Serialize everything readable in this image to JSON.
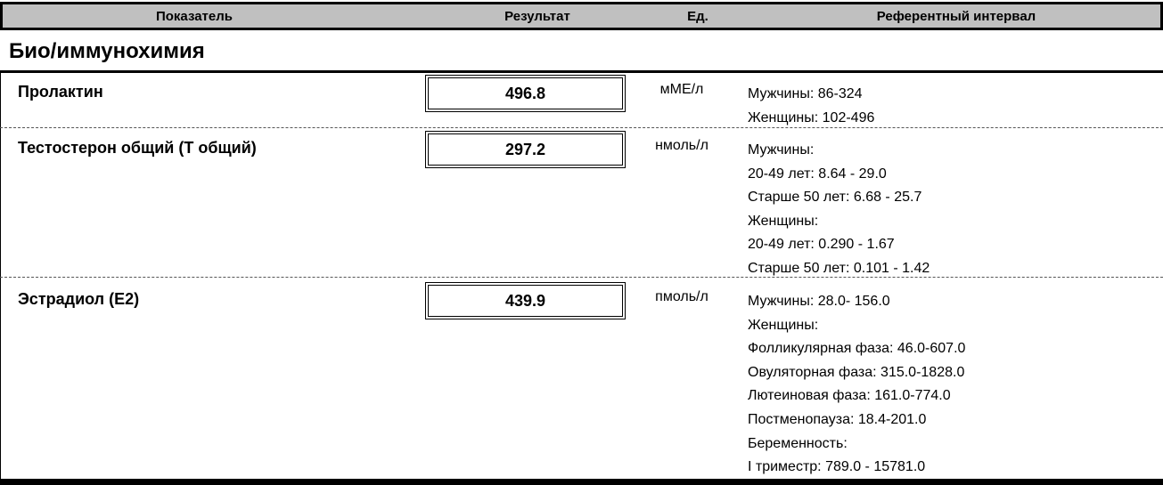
{
  "header": {
    "indicator": "Показатель",
    "result": "Результат",
    "unit": "Ед.",
    "reference": "Референтный интервал"
  },
  "section": {
    "title": "Био/иммунохимия"
  },
  "rows": [
    {
      "name": "Пролактин",
      "result": "496.8",
      "unit": "мМЕ/л",
      "reference": [
        "Мужчины: 86-324",
        "Женщины: 102-496"
      ]
    },
    {
      "name": "Тестостерон общий (Т общий)",
      "result": "297.2",
      "unit": "нмоль/л",
      "reference": [
        "Мужчины:",
        "20-49 лет: 8.64 - 29.0",
        "Старше 50 лет: 6.68 - 25.7",
        "Женщины:",
        "20-49 лет: 0.290 - 1.67",
        "Старше 50 лет: 0.101 - 1.42"
      ]
    },
    {
      "name": "Эстрадиол (E2)",
      "result": "439.9",
      "unit": "пмоль/л",
      "reference": [
        "Мужчины: 28.0- 156.0",
        "Женщины:",
        "Фолликулярная фаза: 46.0-607.0",
        "Овуляторная фаза: 315.0-1828.0",
        "Лютеиновая фаза: 161.0-774.0",
        "Постменопауза: 18.4-201.0",
        "Беременность:",
        "I триместр: 789.0 - 15781.0"
      ]
    }
  ]
}
